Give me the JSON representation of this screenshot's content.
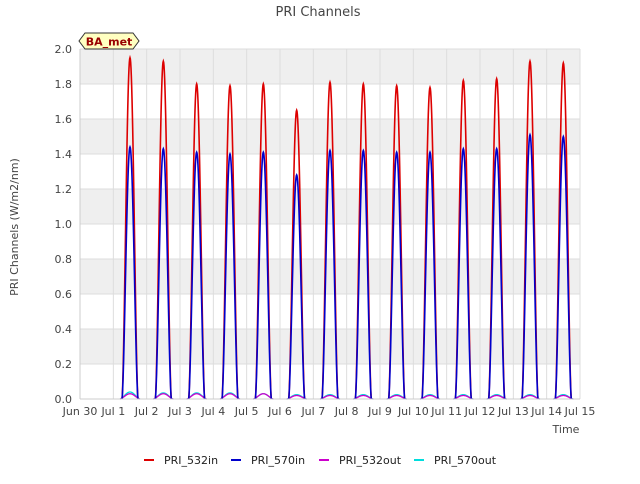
{
  "chart_data": {
    "type": "line",
    "title": "PRI Channels",
    "xlabel": "Time",
    "ylabel": "PRI Channels (W/m2/nm)",
    "badge": "BA_met",
    "xlim": [
      0,
      15
    ],
    "ylim": [
      0,
      2.0
    ],
    "x_ticks": [
      {
        "v": 0,
        "label": "Jun 30"
      },
      {
        "v": 1,
        "label": "Jul 1"
      },
      {
        "v": 2,
        "label": "Jul 2"
      },
      {
        "v": 3,
        "label": "Jul 3"
      },
      {
        "v": 4,
        "label": "Jul 4"
      },
      {
        "v": 5,
        "label": "Jul 5"
      },
      {
        "v": 6,
        "label": "Jul 6"
      },
      {
        "v": 7,
        "label": "Jul 7"
      },
      {
        "v": 8,
        "label": "Jul 8"
      },
      {
        "v": 9,
        "label": "Jul 9"
      },
      {
        "v": 10,
        "label": "Jul 10"
      },
      {
        "v": 11,
        "label": "Jul 11"
      },
      {
        "v": 12,
        "label": "Jul 12"
      },
      {
        "v": 13,
        "label": "Jul 13"
      },
      {
        "v": 14,
        "label": "Jul 14"
      },
      {
        "v": 15,
        "label": "Jul 15"
      }
    ],
    "y_ticks": [
      {
        "v": 0.0,
        "label": "0.0"
      },
      {
        "v": 0.2,
        "label": "0.2"
      },
      {
        "v": 0.4,
        "label": "0.4"
      },
      {
        "v": 0.6,
        "label": "0.6"
      },
      {
        "v": 0.8,
        "label": "0.8"
      },
      {
        "v": 1.0,
        "label": "1.0"
      },
      {
        "v": 1.2,
        "label": "1.2"
      },
      {
        "v": 1.4,
        "label": "1.4"
      },
      {
        "v": 1.6,
        "label": "1.6"
      },
      {
        "v": 1.8,
        "label": "1.8"
      },
      {
        "v": 2.0,
        "label": "2.0"
      }
    ],
    "day_centers": [
      1.5,
      2.5,
      3.5,
      4.5,
      5.5,
      6.5,
      7.5,
      8.5,
      9.5,
      10.5,
      11.5,
      12.5,
      13.5,
      14.5
    ],
    "series": [
      {
        "name": "PRI_532in",
        "color": "#dd0000",
        "daily_peaks": [
          1.95,
          1.93,
          1.8,
          1.79,
          1.8,
          1.65,
          1.81,
          1.8,
          1.79,
          1.78,
          1.82,
          1.83,
          1.93,
          1.92
        ]
      },
      {
        "name": "PRI_570in",
        "color": "#0000cc",
        "daily_peaks": [
          1.44,
          1.43,
          1.41,
          1.4,
          1.41,
          1.28,
          1.42,
          1.42,
          1.41,
          1.41,
          1.43,
          1.43,
          1.51,
          1.5
        ]
      },
      {
        "name": "PRI_532out",
        "color": "#cc00cc",
        "daily_peaks": [
          0.03,
          0.03,
          0.03,
          0.03,
          0.03,
          0.02,
          0.02,
          0.02,
          0.02,
          0.02,
          0.02,
          0.02,
          0.02,
          0.02
        ]
      },
      {
        "name": "PRI_570out",
        "color": "#00dddd",
        "daily_peaks": [
          0.04,
          0.035,
          0.035,
          0.035,
          0.03,
          0.025,
          0.025,
          0.025,
          0.025,
          0.025,
          0.025,
          0.025,
          0.025,
          0.025
        ]
      }
    ]
  }
}
